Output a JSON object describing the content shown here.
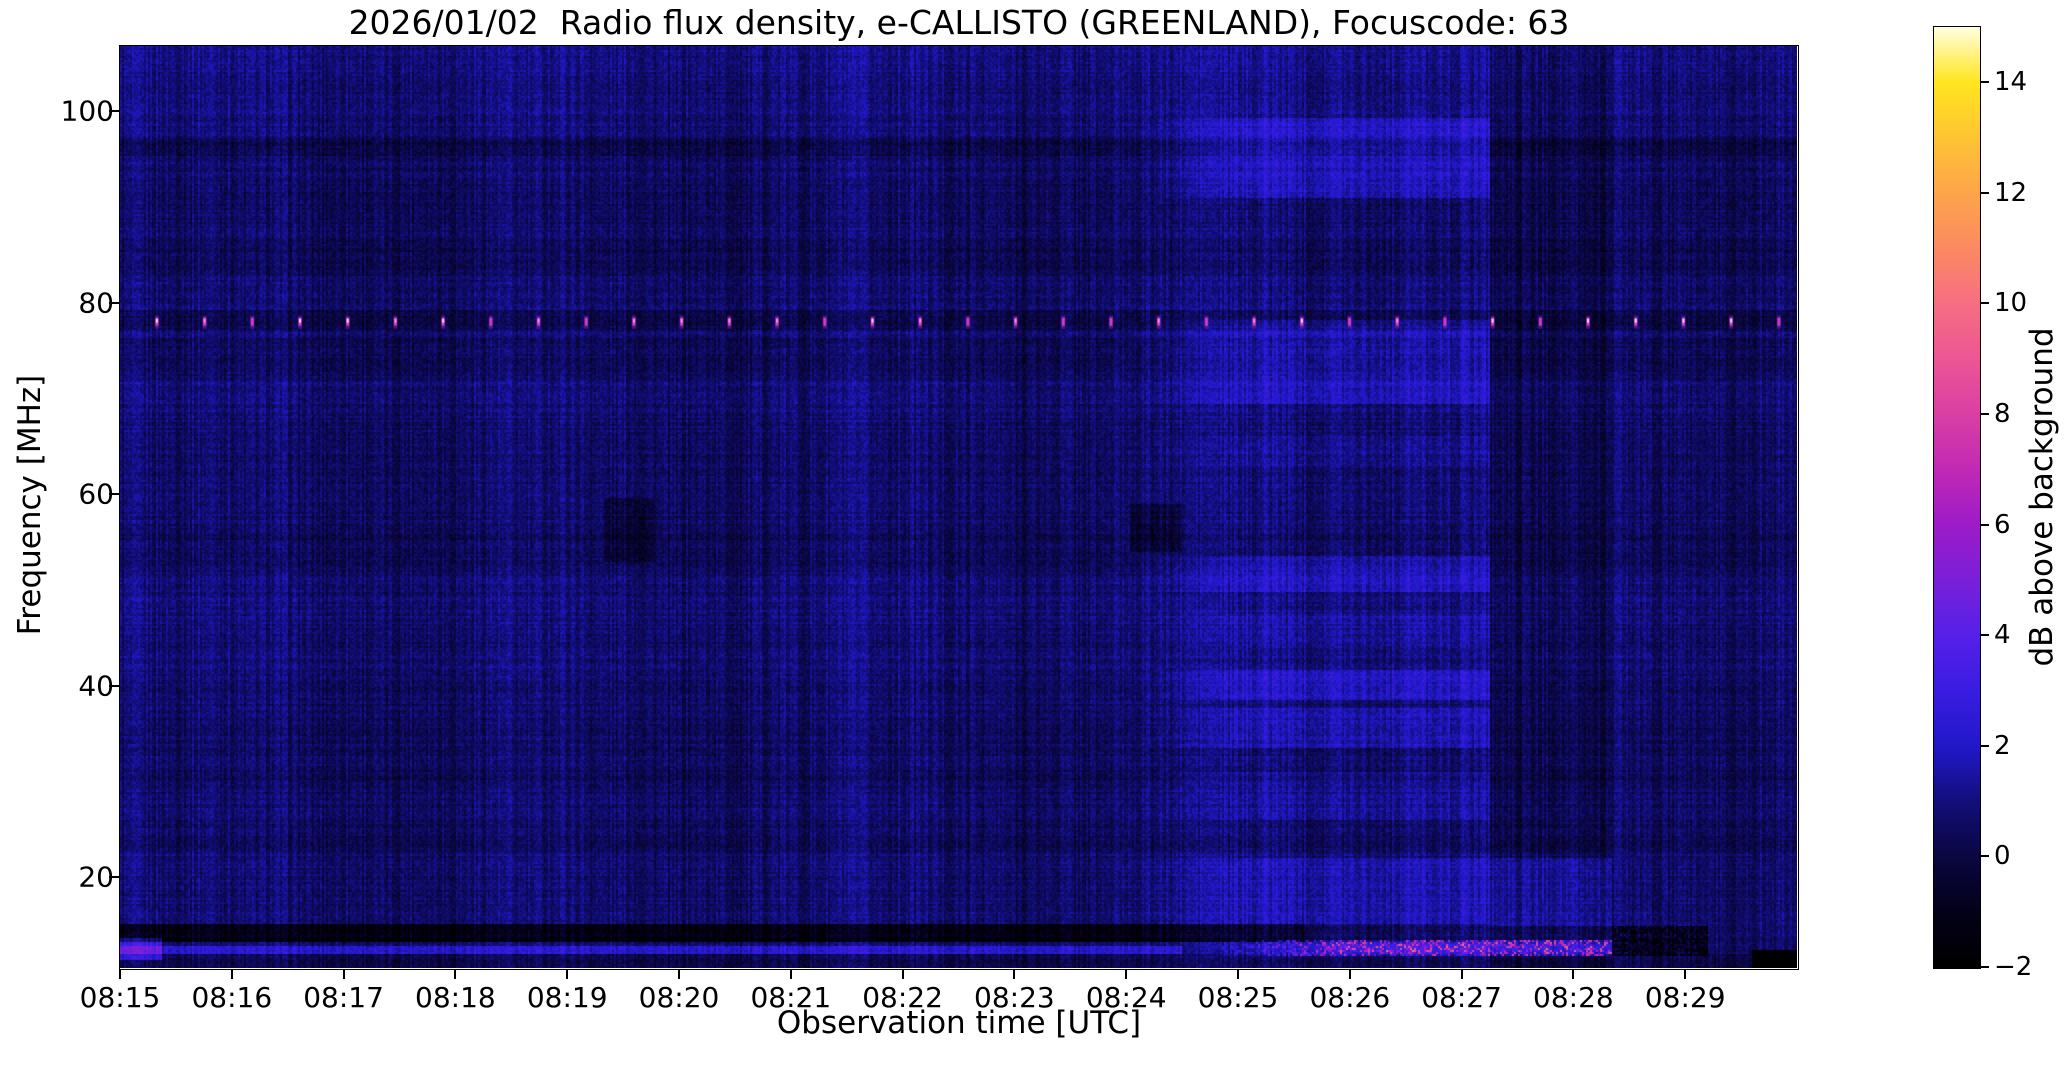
{
  "figure": {
    "title": "2026/01/02  Radio flux density, e-CALLISTO (GREENLAND), Focuscode: 63"
  },
  "chart_data": {
    "type": "heatmap",
    "subtype": "radio-spectrogram",
    "title": "2026/01/02  Radio flux density, e-CALLISTO (GREENLAND), Focuscode: 63",
    "xlabel": "Observation time [UTC]",
    "ylabel": "Frequency [MHz]",
    "x_start": "08:15",
    "x_end": "08:30",
    "x_span_minutes": 15,
    "x_ticks": [
      "08:15",
      "08:16",
      "08:17",
      "08:18",
      "08:19",
      "08:20",
      "08:21",
      "08:22",
      "08:23",
      "08:24",
      "08:25",
      "08:26",
      "08:27",
      "08:28",
      "08:29"
    ],
    "y_ticks": [
      100,
      80,
      60,
      40,
      20
    ],
    "y_range_mhz": [
      10.5,
      106.8
    ],
    "grid": false,
    "colorbar": {
      "label": "dB above background",
      "ticks": [
        14,
        12,
        10,
        8,
        6,
        4,
        2,
        0,
        -2
      ],
      "range_db": [
        -2,
        15
      ],
      "colormap": "gnuplot2",
      "stops": [
        [
          -2,
          "#000000"
        ],
        [
          -1,
          "#030118"
        ],
        [
          0,
          "#0a0640"
        ],
        [
          1,
          "#120e7a"
        ],
        [
          2,
          "#2118c8"
        ],
        [
          3,
          "#3a1ce2"
        ],
        [
          4,
          "#5520e8"
        ],
        [
          5,
          "#7a1fd8"
        ],
        [
          6,
          "#9c1bc8"
        ],
        [
          7,
          "#c129b4"
        ],
        [
          8,
          "#da3fa4"
        ],
        [
          9,
          "#ec5694"
        ],
        [
          10,
          "#f66e82"
        ],
        [
          11,
          "#fb8a62"
        ],
        [
          12,
          "#fda54a"
        ],
        [
          13,
          "#fec434"
        ],
        [
          14,
          "#ffe51e"
        ],
        [
          15,
          "#ffffe0"
        ]
      ]
    },
    "background_db": 0.72,
    "noise": {
      "column": 0.55,
      "cell": 0.5,
      "row": 0.26,
      "wave_x": [
        0.16,
        53,
        0.1,
        11.3
      ],
      "wave_y": [
        0.14,
        41
      ]
    },
    "static_bands": [
      [
        104.0,
        107.0,
        0.25
      ],
      [
        95.4,
        97.2,
        -0.7
      ],
      [
        88.0,
        95.0,
        -0.12
      ],
      [
        83.5,
        86.5,
        -0.3
      ],
      [
        77.2,
        79.3,
        -0.55
      ],
      [
        72.0,
        76.2,
        -0.38
      ],
      [
        65.0,
        68.0,
        -0.1
      ],
      [
        52.0,
        56.0,
        -0.25
      ],
      [
        44.0,
        46.0,
        -0.12
      ],
      [
        29.5,
        31.5,
        -0.18
      ],
      [
        22.5,
        26.0,
        -0.3
      ],
      [
        15.2,
        21.0,
        -0.1
      ],
      [
        10.5,
        11.9,
        -0.55
      ]
    ],
    "features": {
      "left_dark_band": {
        "f": [
          13.15,
          15.05
        ],
        "t": [
          0,
          10.6
        ],
        "dv": -2.0
      },
      "left_dark_band2": {
        "f": [
          13.15,
          15.05
        ],
        "t": [
          10.6,
          12.26
        ],
        "dv": -1.0
      },
      "bright_blue_line": {
        "f": [
          11.95,
          12.8
        ],
        "t": [
          0,
          9.5
        ],
        "dv": 1.65
      },
      "left_edge_patch": {
        "f": [
          11.4,
          13.6
        ],
        "t": [
          0,
          0.38
        ],
        "dv": 2.2
      },
      "dark_patches": [
        {
          "t": [
            4.33,
            4.78
          ],
          "f": [
            53.0,
            59.5
          ],
          "dv": -0.8
        },
        {
          "t": [
            9.03,
            9.5
          ],
          "f": [
            54.0,
            59.0
          ],
          "dv": -0.9
        }
      ],
      "enhancement": {
        "t": [
          8.75,
          12.26
        ],
        "ramp": [
          8.9,
          10.3
        ],
        "base_dv": 0.28,
        "bands": [
          [
            91.0,
            99.2,
            1.15
          ],
          [
            69.5,
            78.2,
            0.9
          ],
          [
            63.0,
            66.0,
            0.4
          ],
          [
            49.8,
            53.6,
            1.0
          ],
          [
            44.0,
            47.5,
            0.5
          ],
          [
            38.4,
            41.6,
            1.25
          ],
          [
            33.4,
            37.6,
            0.95
          ],
          [
            26.0,
            31.0,
            0.5
          ],
          [
            14.8,
            22.0,
            0.8
          ],
          [
            13.4,
            14.8,
            0.6
          ]
        ]
      },
      "post_dark_column": {
        "t": [
          12.26,
          13.34
        ],
        "dv": -0.5,
        "keep_band": {
          "f": [
            14.8,
            22.0
          ],
          "dv": 0.45
        }
      },
      "bottom_burst": {
        "f": [
          11.8,
          13.45
        ],
        "t": [
          9.3,
          13.34
        ],
        "ramp": [
          9.4,
          11.3
        ],
        "dv": 1.6,
        "speckle_db": 6.8,
        "hot_f": [
          12.2,
          13.1
        ],
        "hot_dv": 0.7
      },
      "post_burst_blotches": {
        "t": [
          13.34,
          14.2
        ],
        "f": [
          11.8,
          14.9
        ],
        "dv": -1.55,
        "blotch_amp": 2.2
      },
      "black_corner": {
        "t": [
          14.6,
          15.0
        ],
        "f": [
          10.5,
          12.45
        ],
        "dv": -9
      },
      "periodic_dots": {
        "freq_mhz": 78,
        "first_offset_min": 0.33,
        "period_min": 0.4267,
        "count": 35,
        "colors": {
          "glow": "rgba(120,40,180,0.55)",
          "mid": "#d23cc8",
          "core": "#ff8ee0",
          "core_bright": "#ffd7f2"
        }
      }
    }
  }
}
